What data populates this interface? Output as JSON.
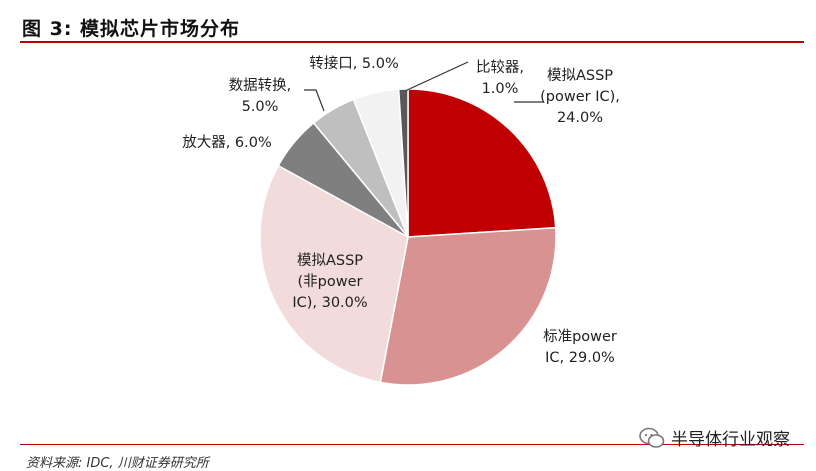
{
  "header": {
    "title": "图 3:  模拟芯片市场分布"
  },
  "footer": {
    "source": "资料来源: IDC, 川财证券研究所"
  },
  "watermark": {
    "text": "半导体行业观察"
  },
  "chart_data": {
    "type": "pie",
    "title": "模拟芯片市场分布",
    "slices": [
      {
        "lines": [
          "模拟ASSP",
          "(power IC),",
          "24.0%"
        ],
        "value": 24.0,
        "color": "#c00000"
      },
      {
        "lines": [
          "标准power",
          "IC, 29.0%"
        ],
        "value": 29.0,
        "color": "#d99292"
      },
      {
        "lines": [
          "模拟ASSP",
          "(非power",
          "IC), 30.0%"
        ],
        "value": 30.0,
        "color": "#f2dbdb"
      },
      {
        "lines": [
          "放大器, 6.0%"
        ],
        "value": 6.0,
        "color": "#7f7f7f"
      },
      {
        "lines": [
          "数据转换,",
          "5.0%"
        ],
        "value": 5.0,
        "color": "#bfbfbf"
      },
      {
        "lines": [
          "转接口, 5.0%"
        ],
        "value": 5.0,
        "color": "#f2f2f2"
      },
      {
        "lines": [
          "比较器,",
          "1.0%"
        ],
        "value": 1.0,
        "color": "#595959"
      }
    ]
  }
}
